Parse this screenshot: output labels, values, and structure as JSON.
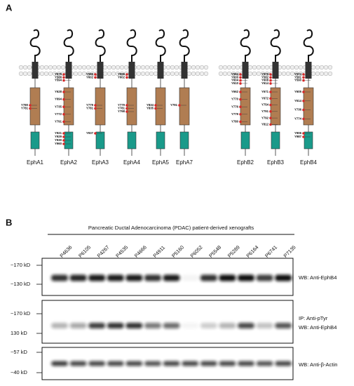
{
  "panel_a": {
    "label": "A",
    "receptors": [
      {
        "name": "EphA1",
        "sites": {
          "jm": [],
          "kinase": [
            "Y780",
            "Y781"
          ],
          "cterm": []
        }
      },
      {
        "name": "EphA2",
        "sites": {
          "jm": [
            "Y575",
            "Y588",
            "Y594"
          ],
          "kinase": [
            "Y628",
            "Y694",
            "Y735",
            "Y772",
            "Y791"
          ],
          "cterm": [
            "Y921",
            "Y929",
            "Y930",
            "Y960"
          ]
        }
      },
      {
        "name": "EphA3",
        "sites": {
          "jm": [
            "Y596",
            "Y602"
          ],
          "kinase": [
            "Y779",
            "Y781"
          ],
          "cterm": [
            "Y937"
          ]
        }
      },
      {
        "name": "EphA4",
        "sites": {
          "jm": [
            "Y596",
            "Y602"
          ],
          "kinase": [
            "Y779",
            "Y781",
            "Y798"
          ],
          "cterm": []
        }
      },
      {
        "name": "EphA5",
        "sites": {
          "jm": [],
          "kinase": [
            "Y834",
            "Y835"
          ],
          "cterm": []
        }
      },
      {
        "name": "EphA7",
        "sites": {
          "jm": [],
          "kinase": [
            "Y791"
          ],
          "cterm": []
        }
      },
      {
        "name": "EphB2",
        "sites": {
          "jm": [
            "Y594",
            "Y600",
            "Y604",
            "Y610"
          ],
          "kinase": [
            "Y662",
            "Y770",
            "Y776",
            "Y779",
            "Y780"
          ],
          "cterm": []
        }
      },
      {
        "name": "EphB3",
        "sites": {
          "jm": [
            "Y576",
            "Y582",
            "Y608",
            "Y614"
          ],
          "kinase": [
            "Y671",
            "Y672",
            "Y754",
            "Y791",
            "Y792",
            "Y812"
          ],
          "cterm": []
        }
      },
      {
        "name": "EphB4",
        "sites": {
          "jm": [
            "Y574",
            "Y581",
            "Y590"
          ],
          "kinase": [
            "Y605",
            "Y614",
            "Y736",
            "Y774"
          ],
          "cterm": [
            "Y906",
            "Y987"
          ]
        }
      }
    ]
  },
  "panel_b": {
    "label": "B",
    "title": "Pancreatic Ductal Adenocarcinoma (PDAC) patient-derived xenografts",
    "samples": [
      "P4636",
      "P6105",
      "P4267",
      "P4535",
      "P4666",
      "P4911",
      "P5160",
      "P6052",
      "P5548",
      "P5289",
      "P6164",
      "P6741",
      "P7135"
    ],
    "blots": [
      {
        "markers": [
          "~170 kD",
          "~130 kD"
        ],
        "labels": [
          "WB: Anti-EphB4"
        ]
      },
      {
        "markers": [
          "~170 kD",
          "130 kD"
        ],
        "labels": [
          "IP: Anti-pTyr",
          "WB: Anti-EphB4"
        ]
      },
      {
        "markers": [
          "~57 kD",
          "~40 kD"
        ],
        "labels": [
          "WB: Anti-β-Actin"
        ]
      }
    ]
  }
}
